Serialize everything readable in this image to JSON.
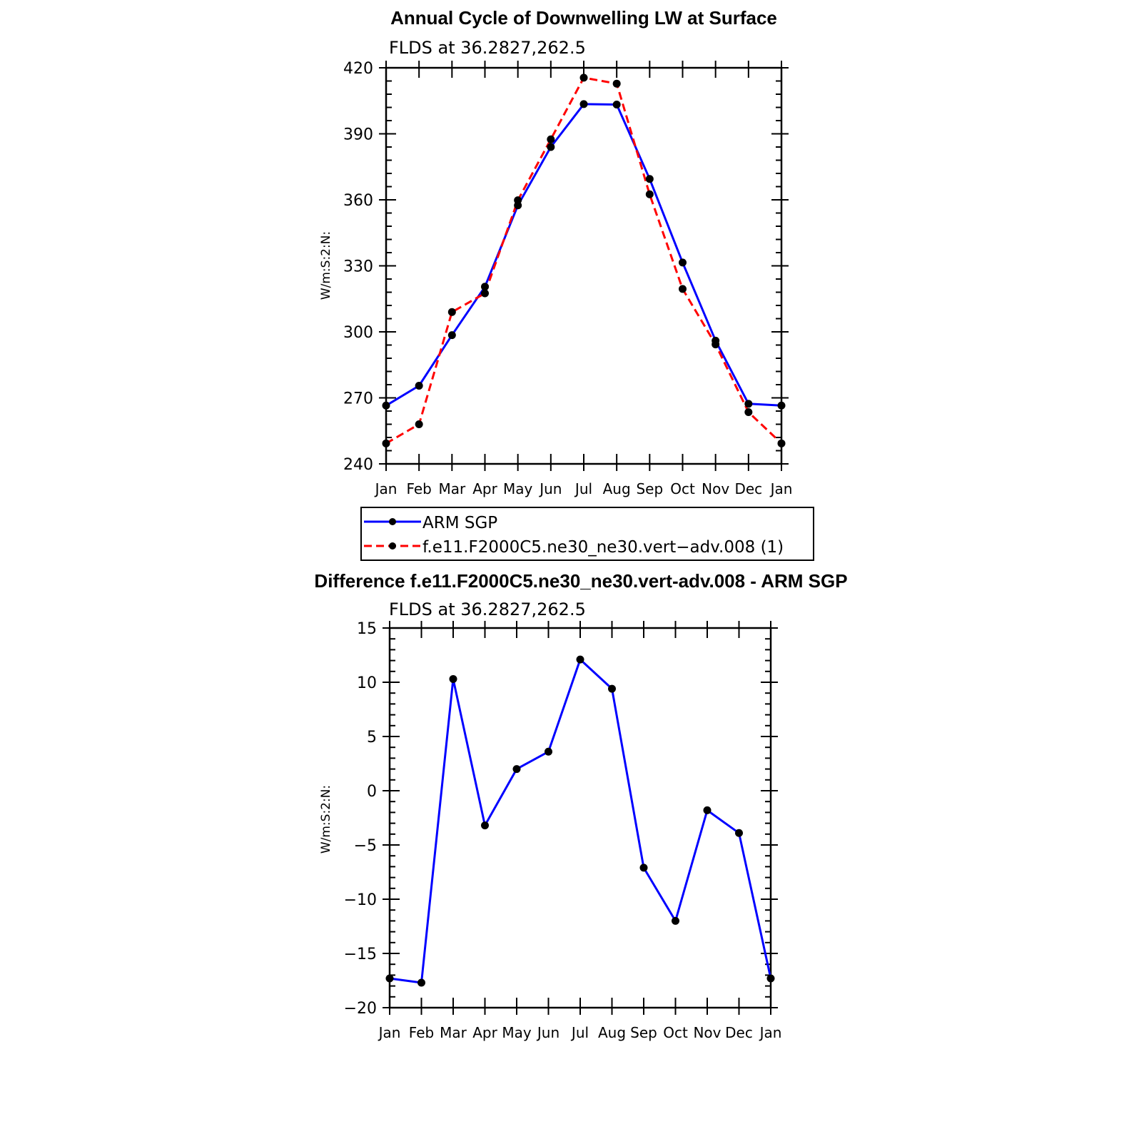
{
  "chart_data": [
    {
      "type": "line",
      "title": "Annual Cycle of Downwelling LW at Surface",
      "subtitle": "FLDS at 36.2827,262.5",
      "ylabel": "W/m:S:2:N:",
      "xlabel": "",
      "categories": [
        "Jan",
        "Feb",
        "Mar",
        "Apr",
        "May",
        "Jun",
        "Jul",
        "Aug",
        "Sep",
        "Oct",
        "Nov",
        "Dec",
        "Jan"
      ],
      "ylim": [
        240,
        420
      ],
      "yticks": [
        "240",
        "270",
        "300",
        "330",
        "360",
        "390",
        "420"
      ],
      "series": [
        {
          "name": "ARM SGP",
          "color": "#0000ff",
          "dash": "solid",
          "values": [
            266.5,
            275.5,
            298.5,
            320.5,
            357.5,
            384.0,
            403.5,
            403.3,
            369.5,
            331.5,
            296.0,
            267.3,
            266.5
          ]
        },
        {
          "name": "f.e11.F2000C5.ne30_ne30.vert−adv.008 (1)",
          "color": "#ff0000",
          "dash": "dashed",
          "values": [
            249.3,
            258.0,
            309.0,
            317.5,
            359.8,
            387.5,
            415.5,
            412.8,
            362.5,
            319.5,
            294.3,
            263.5,
            249.3
          ]
        }
      ],
      "legend": [
        "ARM SGP",
        "f.e11.F2000C5.ne30_ne30.vert−adv.008 (1)"
      ]
    },
    {
      "type": "line",
      "title": "Difference f.e11.F2000C5.ne30_ne30.vert-adv.008 - ARM SGP",
      "subtitle": "FLDS at 36.2827,262.5",
      "ylabel": "W/m:S:2:N:",
      "xlabel": "",
      "categories": [
        "Jan",
        "Feb",
        "Mar",
        "Apr",
        "May",
        "Jun",
        "Jul",
        "Aug",
        "Sep",
        "Oct",
        "Nov",
        "Dec",
        "Jan"
      ],
      "ylim": [
        -20,
        15
      ],
      "yticks": [
        "−20",
        "−15",
        "−10",
        "−5",
        "0",
        "5",
        "10",
        "15"
      ],
      "series": [
        {
          "name": "Difference",
          "color": "#0000ff",
          "dash": "solid",
          "values": [
            -17.3,
            -17.7,
            10.3,
            -3.2,
            2.0,
            3.6,
            12.1,
            9.4,
            -7.1,
            -12.0,
            -1.8,
            -3.9,
            -17.3
          ]
        }
      ]
    }
  ]
}
